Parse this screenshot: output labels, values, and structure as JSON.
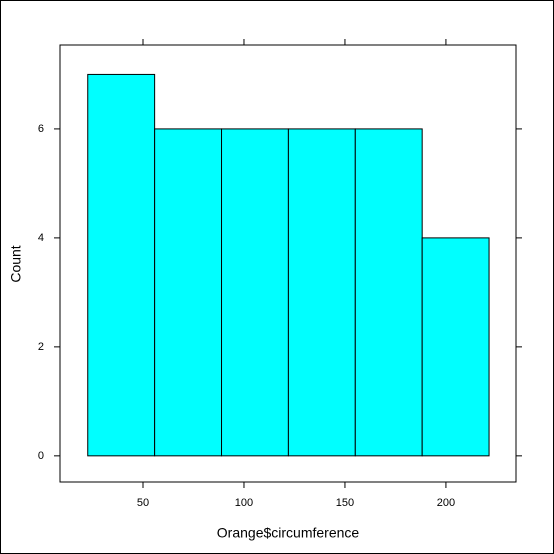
{
  "chart_data": {
    "type": "histogram",
    "x_label": "Orange$circumference",
    "y_label": "Count",
    "bins": [
      22.64,
      55.76,
      88.88,
      122.0,
      155.12,
      188.24,
      221.36
    ],
    "values": [
      7,
      6,
      6,
      6,
      6,
      4
    ],
    "color": "#00ffff",
    "xlim": [
      8.9,
      234.7
    ],
    "xticks": [
      50,
      100,
      150,
      200
    ],
    "ylim": [
      -0.48,
      7.54
    ],
    "yticks": [
      0,
      2,
      4,
      6
    ]
  }
}
